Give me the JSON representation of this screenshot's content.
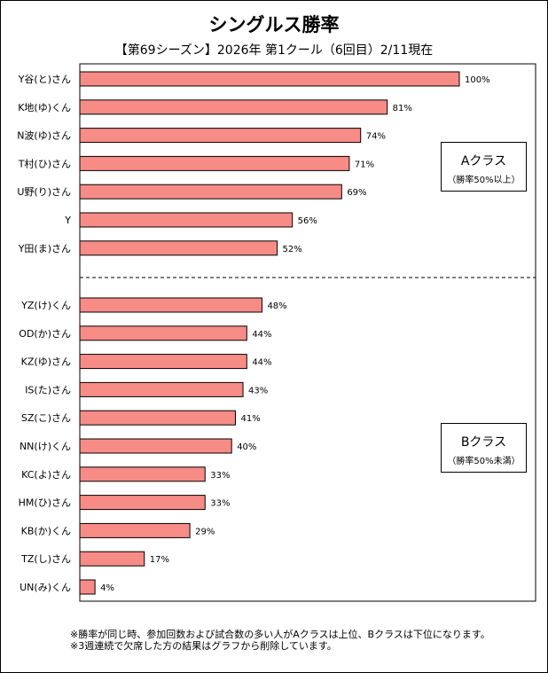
{
  "chart_data": {
    "type": "bar",
    "orientation": "horizontal",
    "title": "シングルス勝率",
    "subtitle": "【第69シーズン】2026年 第1クール（6回目）2/11現在",
    "value_suffix": "%",
    "xlim": [
      0,
      100
    ],
    "series": [
      {
        "name": "Aクラス",
        "categories": [
          "Y谷(と)さん",
          "K地(ゆ)くん",
          "N波(ゆ)さん",
          "T村(ひ)さん",
          "U野(り)さん",
          "Y",
          "Y田(ま)さん"
        ],
        "values": [
          100,
          81,
          74,
          71,
          69,
          56,
          52
        ]
      },
      {
        "name": "Bクラス",
        "categories": [
          "YZ(け)くん",
          "OD(か)さん",
          "KZ(ゆ)さん",
          "IS(た)さん",
          "SZ(こ)さん",
          "NN(け)くん",
          "KC(よ)さん",
          "HM(ひ)さん",
          "KB(か)くん",
          "TZ(し)さん",
          "UN(み)くん"
        ],
        "values": [
          48,
          44,
          44,
          43,
          41,
          40,
          33,
          33,
          29,
          17,
          4
        ]
      }
    ],
    "bar_color": "#F78B86"
  },
  "legend": {
    "a_title": "Aクラス",
    "a_sub": "（勝率50%以上）",
    "b_title": "Bクラス",
    "b_sub": "（勝率50%未満）"
  },
  "notes": [
    "※勝率が同じ時、参加回数および試合数の多い人がAクラスは上位、Bクラスは下位になります。",
    "※3週連続で欠席した方の結果はグラフから削除しています。"
  ]
}
